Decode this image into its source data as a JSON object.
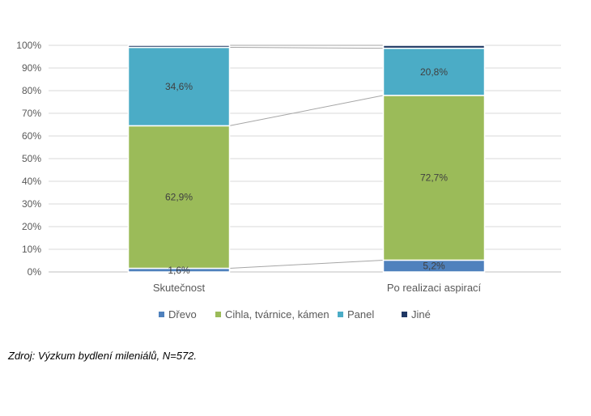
{
  "chart_data": {
    "type": "bar",
    "stacked": true,
    "percent": true,
    "categories": [
      "Skutečnost",
      "Po realizaci aspirací"
    ],
    "series": [
      {
        "name": "Dřevo",
        "values": [
          1.6,
          5.2
        ],
        "labels": [
          "1,6%",
          "5,2%"
        ],
        "color": "#4F81BD"
      },
      {
        "name": "Cihla, tvárnice, kámen",
        "values": [
          62.9,
          72.7
        ],
        "labels": [
          "62,9%",
          "72,7%"
        ],
        "color": "#9BBB59"
      },
      {
        "name": "Panel",
        "values": [
          34.6,
          20.8
        ],
        "labels": [
          "34,6%",
          "20,8%"
        ],
        "color": "#4BACC6"
      },
      {
        "name": "Jiné",
        "values": [
          0.9,
          1.3
        ],
        "labels": [
          "",
          ""
        ],
        "color": "#1F3864"
      }
    ],
    "y_ticks": [
      "0%",
      "10%",
      "20%",
      "30%",
      "40%",
      "50%",
      "60%",
      "70%",
      "80%",
      "90%",
      "100%"
    ],
    "ylim": [
      0,
      100
    ],
    "grid": true,
    "series_lines": true,
    "legend_position": "bottom",
    "title": "",
    "xlabel": "",
    "ylabel": ""
  },
  "source_note": "Zdroj: Výzkum bydlení mileniálů, N=572."
}
